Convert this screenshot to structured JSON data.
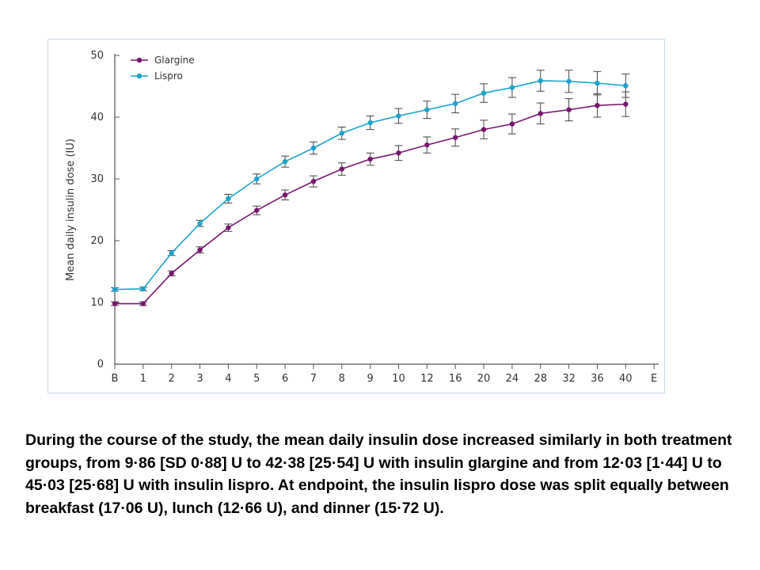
{
  "chart_data": {
    "type": "line",
    "xlabel": "",
    "ylabel": "Mean daily insulin dose (IU)",
    "categories": [
      "B",
      "1",
      "2",
      "3",
      "4",
      "5",
      "6",
      "7",
      "8",
      "9",
      "10",
      "12",
      "16",
      "20",
      "24",
      "28",
      "32",
      "36",
      "40",
      "E"
    ],
    "ylim": [
      0,
      50
    ],
    "yticks": [
      0,
      10,
      20,
      30,
      40,
      50
    ],
    "grid": false,
    "legend_position": "top-left",
    "series": [
      {
        "name": "Glargine",
        "color": "#7a1670",
        "values": [
          9.8,
          9.8,
          14.7,
          18.5,
          22.1,
          24.9,
          27.4,
          29.6,
          31.6,
          33.2,
          34.2,
          35.5,
          36.7,
          38.0,
          38.9,
          40.6,
          41.2,
          41.9,
          42.1,
          null
        ],
        "errors": [
          0.3,
          0.3,
          0.4,
          0.5,
          0.6,
          0.7,
          0.8,
          0.9,
          1.0,
          1.0,
          1.2,
          1.3,
          1.4,
          1.5,
          1.6,
          1.7,
          1.8,
          1.9,
          2.0,
          null
        ]
      },
      {
        "name": "Lispro",
        "color": "#1aa3cc",
        "values": [
          12.1,
          12.2,
          18.0,
          22.8,
          26.8,
          30.0,
          32.8,
          35.0,
          37.4,
          39.1,
          40.2,
          41.2,
          42.2,
          43.9,
          44.8,
          45.9,
          45.8,
          45.5,
          45.1,
          null
        ],
        "errors": [
          0.3,
          0.3,
          0.4,
          0.5,
          0.7,
          0.8,
          0.9,
          1.0,
          1.0,
          1.1,
          1.2,
          1.4,
          1.5,
          1.5,
          1.6,
          1.7,
          1.8,
          1.9,
          1.9,
          null
        ]
      }
    ]
  },
  "colors": {
    "axis": "#555555",
    "panel_border": "#c9dbe8"
  },
  "caption": "During the course of the study, the mean daily insulin dose increased similarly in both treatment groups, from 9·86 [SD 0·88] U to 42·38 [25·54] U with insulin glargine and from 12·03 [1·44] U to 45·03 [25·68] U with insulin lispro. At endpoint, the insulin lispro dose was split equally between breakfast (17·06 U), lunch (12·66 U), and dinner (15·72 U)."
}
